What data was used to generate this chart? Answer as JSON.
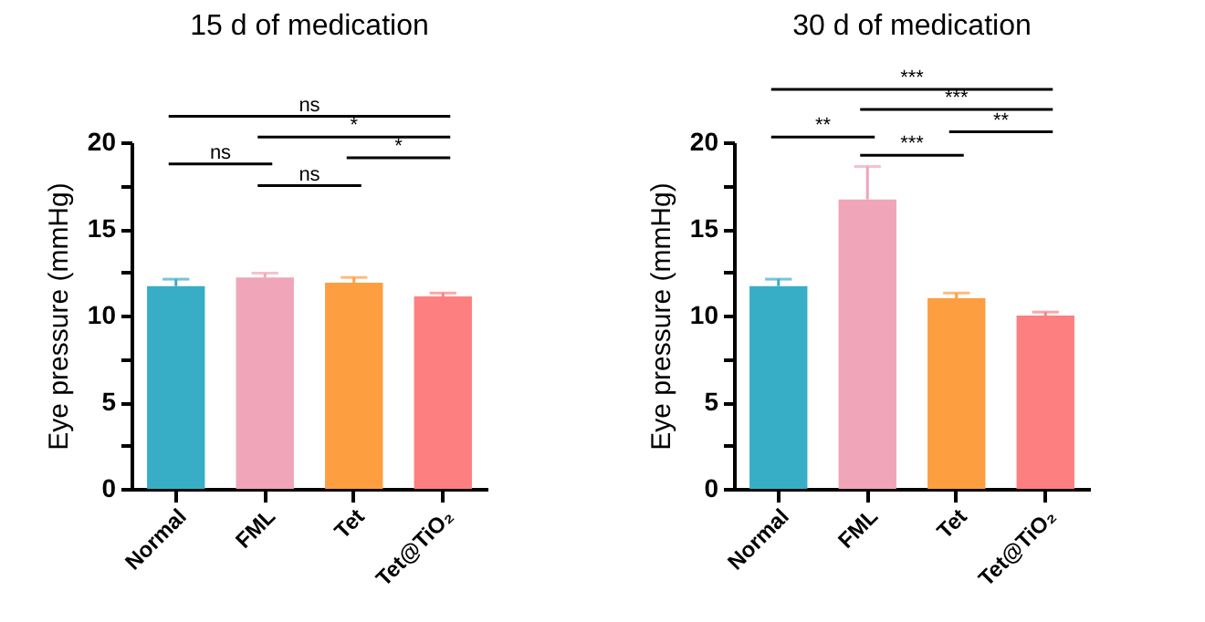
{
  "chart_data": [
    {
      "type": "bar",
      "title": "15 d of medication",
      "ylabel": "Eye pressure (mmHg)",
      "categories": [
        "Normal",
        "FML",
        "Tet",
        "Tet@TiO₂"
      ],
      "values": [
        11.7,
        12.2,
        11.9,
        11.1
      ],
      "errors": [
        [
          11.7,
          12.1
        ],
        [
          12.2,
          12.45
        ],
        [
          11.9,
          12.2
        ],
        [
          11.1,
          11.3
        ]
      ],
      "colors": [
        "#38aec6",
        "#f0a5b8",
        "#fd9e40",
        "#fd7f7f"
      ],
      "ylim": [
        0,
        20
      ],
      "yticks": [
        0,
        {
          "value": 2.5,
          "label": null
        },
        5,
        {
          "value": 7.5,
          "label": null
        },
        10,
        {
          "value": 12.5,
          "label": null
        },
        15,
        {
          "value": 17.5,
          "label": null
        },
        20
      ],
      "annotations": [
        "ns",
        "*",
        "ns",
        "*",
        "ns"
      ],
      "grid": false,
      "legend": false
    },
    {
      "type": "bar",
      "title": "30 d of medication",
      "ylabel": "Eye pressure (mmHg)",
      "categories": [
        "Normal",
        "FML",
        "Tet",
        "Tet@TiO₂"
      ],
      "values": [
        11.7,
        16.7,
        11.0,
        10.0
      ],
      "errors": [
        [
          11.7,
          12.1
        ],
        [
          16.7,
          18.6
        ],
        [
          11.0,
          11.3
        ],
        [
          10.0,
          10.2
        ]
      ],
      "colors": [
        "#38aec6",
        "#f0a5b8",
        "#fd9e40",
        "#fd7f7f"
      ],
      "ylim": [
        0,
        20
      ],
      "yticks": [
        0,
        {
          "value": 2.5,
          "label": null
        },
        5,
        {
          "value": 7.5,
          "label": null
        },
        10,
        {
          "value": 12.5,
          "label": null
        },
        15,
        {
          "value": 17.5,
          "label": null
        },
        20
      ],
      "annotations": [
        "***",
        "***",
        "**",
        "**",
        "***"
      ],
      "grid": false,
      "legend": false
    }
  ]
}
